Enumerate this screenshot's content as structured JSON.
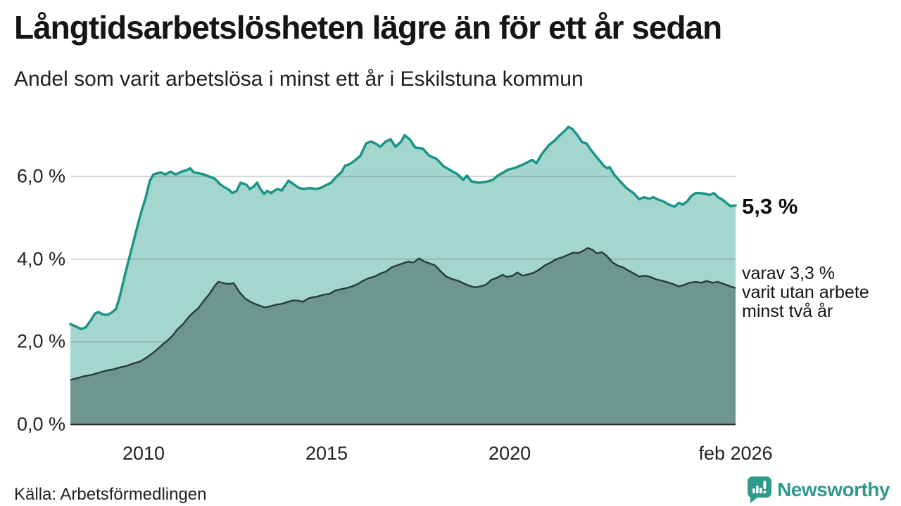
{
  "title": "Långtidsarbetslösheten lägre än för ett år sedan",
  "subtitle": "Andel som varit arbetslösa i minst ett år i Eskilstuna kommun",
  "annotations": {
    "latest_total": "5,3 %",
    "secondary_line1": "varav 3,3 %",
    "secondary_line2": "varit utan arbete",
    "secondary_line3": "minst två år"
  },
  "source": "Källa: Arbetsförmedlingen",
  "branding": {
    "name": "Newsworthy",
    "color": "#2E9A8E"
  },
  "colors": {
    "total_line": "#1A9488",
    "total_fill": "#A4D6CE",
    "two_year_fill": "#6E968E",
    "two_year_line": "#263C37",
    "grid": "rgba(90,105,120,0.28)",
    "axis": "#2D2D2D",
    "text": "#111111"
  },
  "chart_data": {
    "type": "area",
    "title": "Andel som varit arbetslösa i minst ett år i Eskilstuna kommun",
    "unit": "%",
    "grid": "horizontal",
    "x_domain": [
      2008.0,
      2026.17
    ],
    "y_domain": [
      0,
      7.38
    ],
    "x_ticks": [
      {
        "v": 2010,
        "label": "2010"
      },
      {
        "v": 2015,
        "label": "2015"
      },
      {
        "v": 2020,
        "label": "2020"
      },
      {
        "v": 2026.17,
        "label": "feb 2026"
      }
    ],
    "y_ticks": [
      {
        "v": 0,
        "label": "0,0 %"
      },
      {
        "v": 2,
        "label": "2,0 %"
      },
      {
        "v": 4,
        "label": "4,0 %"
      },
      {
        "v": 6,
        "label": "6,0 %"
      }
    ],
    "series": [
      {
        "name": "Arbetslösa minst ett år",
        "latest_value": 5.3,
        "points": [
          [
            2008.0,
            2.43
          ],
          [
            2008.15,
            2.37
          ],
          [
            2008.29,
            2.31
          ],
          [
            2008.42,
            2.35
          ],
          [
            2008.58,
            2.55
          ],
          [
            2008.67,
            2.68
          ],
          [
            2008.77,
            2.72
          ],
          [
            2008.87,
            2.67
          ],
          [
            2009.0,
            2.65
          ],
          [
            2009.12,
            2.7
          ],
          [
            2009.25,
            2.8
          ],
          [
            2009.35,
            3.1
          ],
          [
            2009.54,
            3.8
          ],
          [
            2009.73,
            4.45
          ],
          [
            2009.92,
            5.1
          ],
          [
            2010.06,
            5.5
          ],
          [
            2010.17,
            5.9
          ],
          [
            2010.27,
            6.05
          ],
          [
            2010.46,
            6.1
          ],
          [
            2010.6,
            6.05
          ],
          [
            2010.73,
            6.12
          ],
          [
            2010.88,
            6.05
          ],
          [
            2011.04,
            6.12
          ],
          [
            2011.17,
            6.15
          ],
          [
            2011.27,
            6.2
          ],
          [
            2011.37,
            6.1
          ],
          [
            2011.5,
            6.08
          ],
          [
            2011.65,
            6.05
          ],
          [
            2011.79,
            6.0
          ],
          [
            2011.94,
            5.95
          ],
          [
            2012.08,
            5.82
          ],
          [
            2012.19,
            5.75
          ],
          [
            2012.33,
            5.68
          ],
          [
            2012.42,
            5.6
          ],
          [
            2012.54,
            5.65
          ],
          [
            2012.65,
            5.85
          ],
          [
            2012.81,
            5.8
          ],
          [
            2012.9,
            5.7
          ],
          [
            2013.0,
            5.75
          ],
          [
            2013.1,
            5.85
          ],
          [
            2013.19,
            5.7
          ],
          [
            2013.29,
            5.58
          ],
          [
            2013.38,
            5.65
          ],
          [
            2013.48,
            5.6
          ],
          [
            2013.58,
            5.66
          ],
          [
            2013.67,
            5.7
          ],
          [
            2013.77,
            5.66
          ],
          [
            2013.96,
            5.9
          ],
          [
            2014.12,
            5.8
          ],
          [
            2014.25,
            5.72
          ],
          [
            2014.38,
            5.7
          ],
          [
            2014.54,
            5.72
          ],
          [
            2014.69,
            5.7
          ],
          [
            2014.83,
            5.72
          ],
          [
            2014.96,
            5.78
          ],
          [
            2015.12,
            5.85
          ],
          [
            2015.27,
            6.0
          ],
          [
            2015.4,
            6.1
          ],
          [
            2015.5,
            6.26
          ],
          [
            2015.63,
            6.3
          ],
          [
            2015.79,
            6.4
          ],
          [
            2015.92,
            6.5
          ],
          [
            2016.08,
            6.8
          ],
          [
            2016.21,
            6.85
          ],
          [
            2016.37,
            6.78
          ],
          [
            2016.46,
            6.72
          ],
          [
            2016.62,
            6.85
          ],
          [
            2016.75,
            6.9
          ],
          [
            2016.88,
            6.72
          ],
          [
            2017.04,
            6.85
          ],
          [
            2017.13,
            7.0
          ],
          [
            2017.27,
            6.9
          ],
          [
            2017.42,
            6.7
          ],
          [
            2017.62,
            6.68
          ],
          [
            2017.81,
            6.5
          ],
          [
            2018.0,
            6.43
          ],
          [
            2018.19,
            6.25
          ],
          [
            2018.38,
            6.15
          ],
          [
            2018.58,
            6.05
          ],
          [
            2018.73,
            5.92
          ],
          [
            2018.83,
            6.02
          ],
          [
            2018.96,
            5.88
          ],
          [
            2019.15,
            5.85
          ],
          [
            2019.35,
            5.87
          ],
          [
            2019.54,
            5.92
          ],
          [
            2019.67,
            6.02
          ],
          [
            2019.83,
            6.1
          ],
          [
            2019.96,
            6.17
          ],
          [
            2020.12,
            6.2
          ],
          [
            2020.31,
            6.27
          ],
          [
            2020.5,
            6.35
          ],
          [
            2020.62,
            6.4
          ],
          [
            2020.73,
            6.32
          ],
          [
            2020.88,
            6.55
          ],
          [
            2021.08,
            6.77
          ],
          [
            2021.23,
            6.87
          ],
          [
            2021.37,
            7.0
          ],
          [
            2021.5,
            7.1
          ],
          [
            2021.6,
            7.2
          ],
          [
            2021.71,
            7.15
          ],
          [
            2021.85,
            7.0
          ],
          [
            2021.98,
            6.83
          ],
          [
            2022.1,
            6.8
          ],
          [
            2022.23,
            6.63
          ],
          [
            2022.35,
            6.5
          ],
          [
            2022.46,
            6.38
          ],
          [
            2022.58,
            6.25
          ],
          [
            2022.67,
            6.2
          ],
          [
            2022.73,
            6.23
          ],
          [
            2022.85,
            6.05
          ],
          [
            2023.0,
            5.9
          ],
          [
            2023.19,
            5.72
          ],
          [
            2023.38,
            5.6
          ],
          [
            2023.54,
            5.45
          ],
          [
            2023.67,
            5.5
          ],
          [
            2023.81,
            5.46
          ],
          [
            2023.92,
            5.5
          ],
          [
            2024.06,
            5.44
          ],
          [
            2024.19,
            5.4
          ],
          [
            2024.35,
            5.32
          ],
          [
            2024.5,
            5.27
          ],
          [
            2024.62,
            5.36
          ],
          [
            2024.73,
            5.32
          ],
          [
            2024.85,
            5.4
          ],
          [
            2024.96,
            5.53
          ],
          [
            2025.08,
            5.6
          ],
          [
            2025.21,
            5.6
          ],
          [
            2025.35,
            5.58
          ],
          [
            2025.46,
            5.55
          ],
          [
            2025.58,
            5.6
          ],
          [
            2025.69,
            5.5
          ],
          [
            2025.81,
            5.44
          ],
          [
            2025.92,
            5.36
          ],
          [
            2026.04,
            5.28
          ],
          [
            2026.17,
            5.3
          ]
        ]
      },
      {
        "name": "Arbetslösa minst två år",
        "latest_value": 3.3,
        "points": [
          [
            2008.0,
            1.08
          ],
          [
            2008.19,
            1.12
          ],
          [
            2008.38,
            1.17
          ],
          [
            2008.58,
            1.2
          ],
          [
            2008.77,
            1.25
          ],
          [
            2008.96,
            1.3
          ],
          [
            2009.15,
            1.33
          ],
          [
            2009.35,
            1.38
          ],
          [
            2009.54,
            1.42
          ],
          [
            2009.73,
            1.48
          ],
          [
            2009.92,
            1.53
          ],
          [
            2010.08,
            1.62
          ],
          [
            2010.21,
            1.7
          ],
          [
            2010.35,
            1.8
          ],
          [
            2010.5,
            1.92
          ],
          [
            2010.65,
            2.03
          ],
          [
            2010.79,
            2.15
          ],
          [
            2010.92,
            2.3
          ],
          [
            2011.08,
            2.43
          ],
          [
            2011.23,
            2.6
          ],
          [
            2011.37,
            2.72
          ],
          [
            2011.5,
            2.82
          ],
          [
            2011.65,
            3.0
          ],
          [
            2011.79,
            3.15
          ],
          [
            2011.94,
            3.35
          ],
          [
            2012.04,
            3.45
          ],
          [
            2012.19,
            3.42
          ],
          [
            2012.33,
            3.4
          ],
          [
            2012.46,
            3.42
          ],
          [
            2012.62,
            3.2
          ],
          [
            2012.77,
            3.05
          ],
          [
            2012.9,
            2.98
          ],
          [
            2013.04,
            2.92
          ],
          [
            2013.19,
            2.87
          ],
          [
            2013.31,
            2.83
          ],
          [
            2013.46,
            2.86
          ],
          [
            2013.62,
            2.9
          ],
          [
            2013.77,
            2.92
          ],
          [
            2013.92,
            2.96
          ],
          [
            2014.06,
            3.0
          ],
          [
            2014.19,
            3.0
          ],
          [
            2014.35,
            2.97
          ],
          [
            2014.5,
            3.05
          ],
          [
            2014.63,
            3.08
          ],
          [
            2014.77,
            3.1
          ],
          [
            2014.92,
            3.14
          ],
          [
            2015.08,
            3.16
          ],
          [
            2015.23,
            3.24
          ],
          [
            2015.38,
            3.27
          ],
          [
            2015.54,
            3.3
          ],
          [
            2015.69,
            3.34
          ],
          [
            2015.85,
            3.4
          ],
          [
            2016.0,
            3.48
          ],
          [
            2016.15,
            3.54
          ],
          [
            2016.31,
            3.58
          ],
          [
            2016.46,
            3.65
          ],
          [
            2016.62,
            3.7
          ],
          [
            2016.77,
            3.8
          ],
          [
            2016.92,
            3.85
          ],
          [
            2017.08,
            3.9
          ],
          [
            2017.23,
            3.94
          ],
          [
            2017.38,
            3.92
          ],
          [
            2017.52,
            4.02
          ],
          [
            2017.65,
            3.95
          ],
          [
            2017.81,
            3.9
          ],
          [
            2017.96,
            3.85
          ],
          [
            2018.12,
            3.7
          ],
          [
            2018.27,
            3.58
          ],
          [
            2018.42,
            3.52
          ],
          [
            2018.58,
            3.48
          ],
          [
            2018.73,
            3.42
          ],
          [
            2018.88,
            3.36
          ],
          [
            2019.04,
            3.32
          ],
          [
            2019.19,
            3.34
          ],
          [
            2019.35,
            3.38
          ],
          [
            2019.5,
            3.5
          ],
          [
            2019.65,
            3.55
          ],
          [
            2019.81,
            3.62
          ],
          [
            2019.92,
            3.57
          ],
          [
            2020.08,
            3.6
          ],
          [
            2020.21,
            3.68
          ],
          [
            2020.35,
            3.6
          ],
          [
            2020.5,
            3.63
          ],
          [
            2020.65,
            3.67
          ],
          [
            2020.81,
            3.75
          ],
          [
            2020.96,
            3.85
          ],
          [
            2021.12,
            3.92
          ],
          [
            2021.27,
            4.0
          ],
          [
            2021.42,
            4.04
          ],
          [
            2021.58,
            4.1
          ],
          [
            2021.73,
            4.16
          ],
          [
            2021.88,
            4.15
          ],
          [
            2022.0,
            4.2
          ],
          [
            2022.13,
            4.27
          ],
          [
            2022.27,
            4.22
          ],
          [
            2022.38,
            4.14
          ],
          [
            2022.52,
            4.17
          ],
          [
            2022.65,
            4.08
          ],
          [
            2022.81,
            3.92
          ],
          [
            2022.96,
            3.84
          ],
          [
            2023.1,
            3.8
          ],
          [
            2023.23,
            3.73
          ],
          [
            2023.38,
            3.66
          ],
          [
            2023.54,
            3.58
          ],
          [
            2023.69,
            3.6
          ],
          [
            2023.85,
            3.57
          ],
          [
            2024.0,
            3.51
          ],
          [
            2024.15,
            3.48
          ],
          [
            2024.31,
            3.44
          ],
          [
            2024.46,
            3.4
          ],
          [
            2024.62,
            3.34
          ],
          [
            2024.77,
            3.38
          ],
          [
            2024.92,
            3.43
          ],
          [
            2025.08,
            3.45
          ],
          [
            2025.23,
            3.43
          ],
          [
            2025.38,
            3.47
          ],
          [
            2025.54,
            3.43
          ],
          [
            2025.69,
            3.45
          ],
          [
            2025.85,
            3.4
          ],
          [
            2026.0,
            3.35
          ],
          [
            2026.17,
            3.3
          ]
        ]
      }
    ]
  }
}
